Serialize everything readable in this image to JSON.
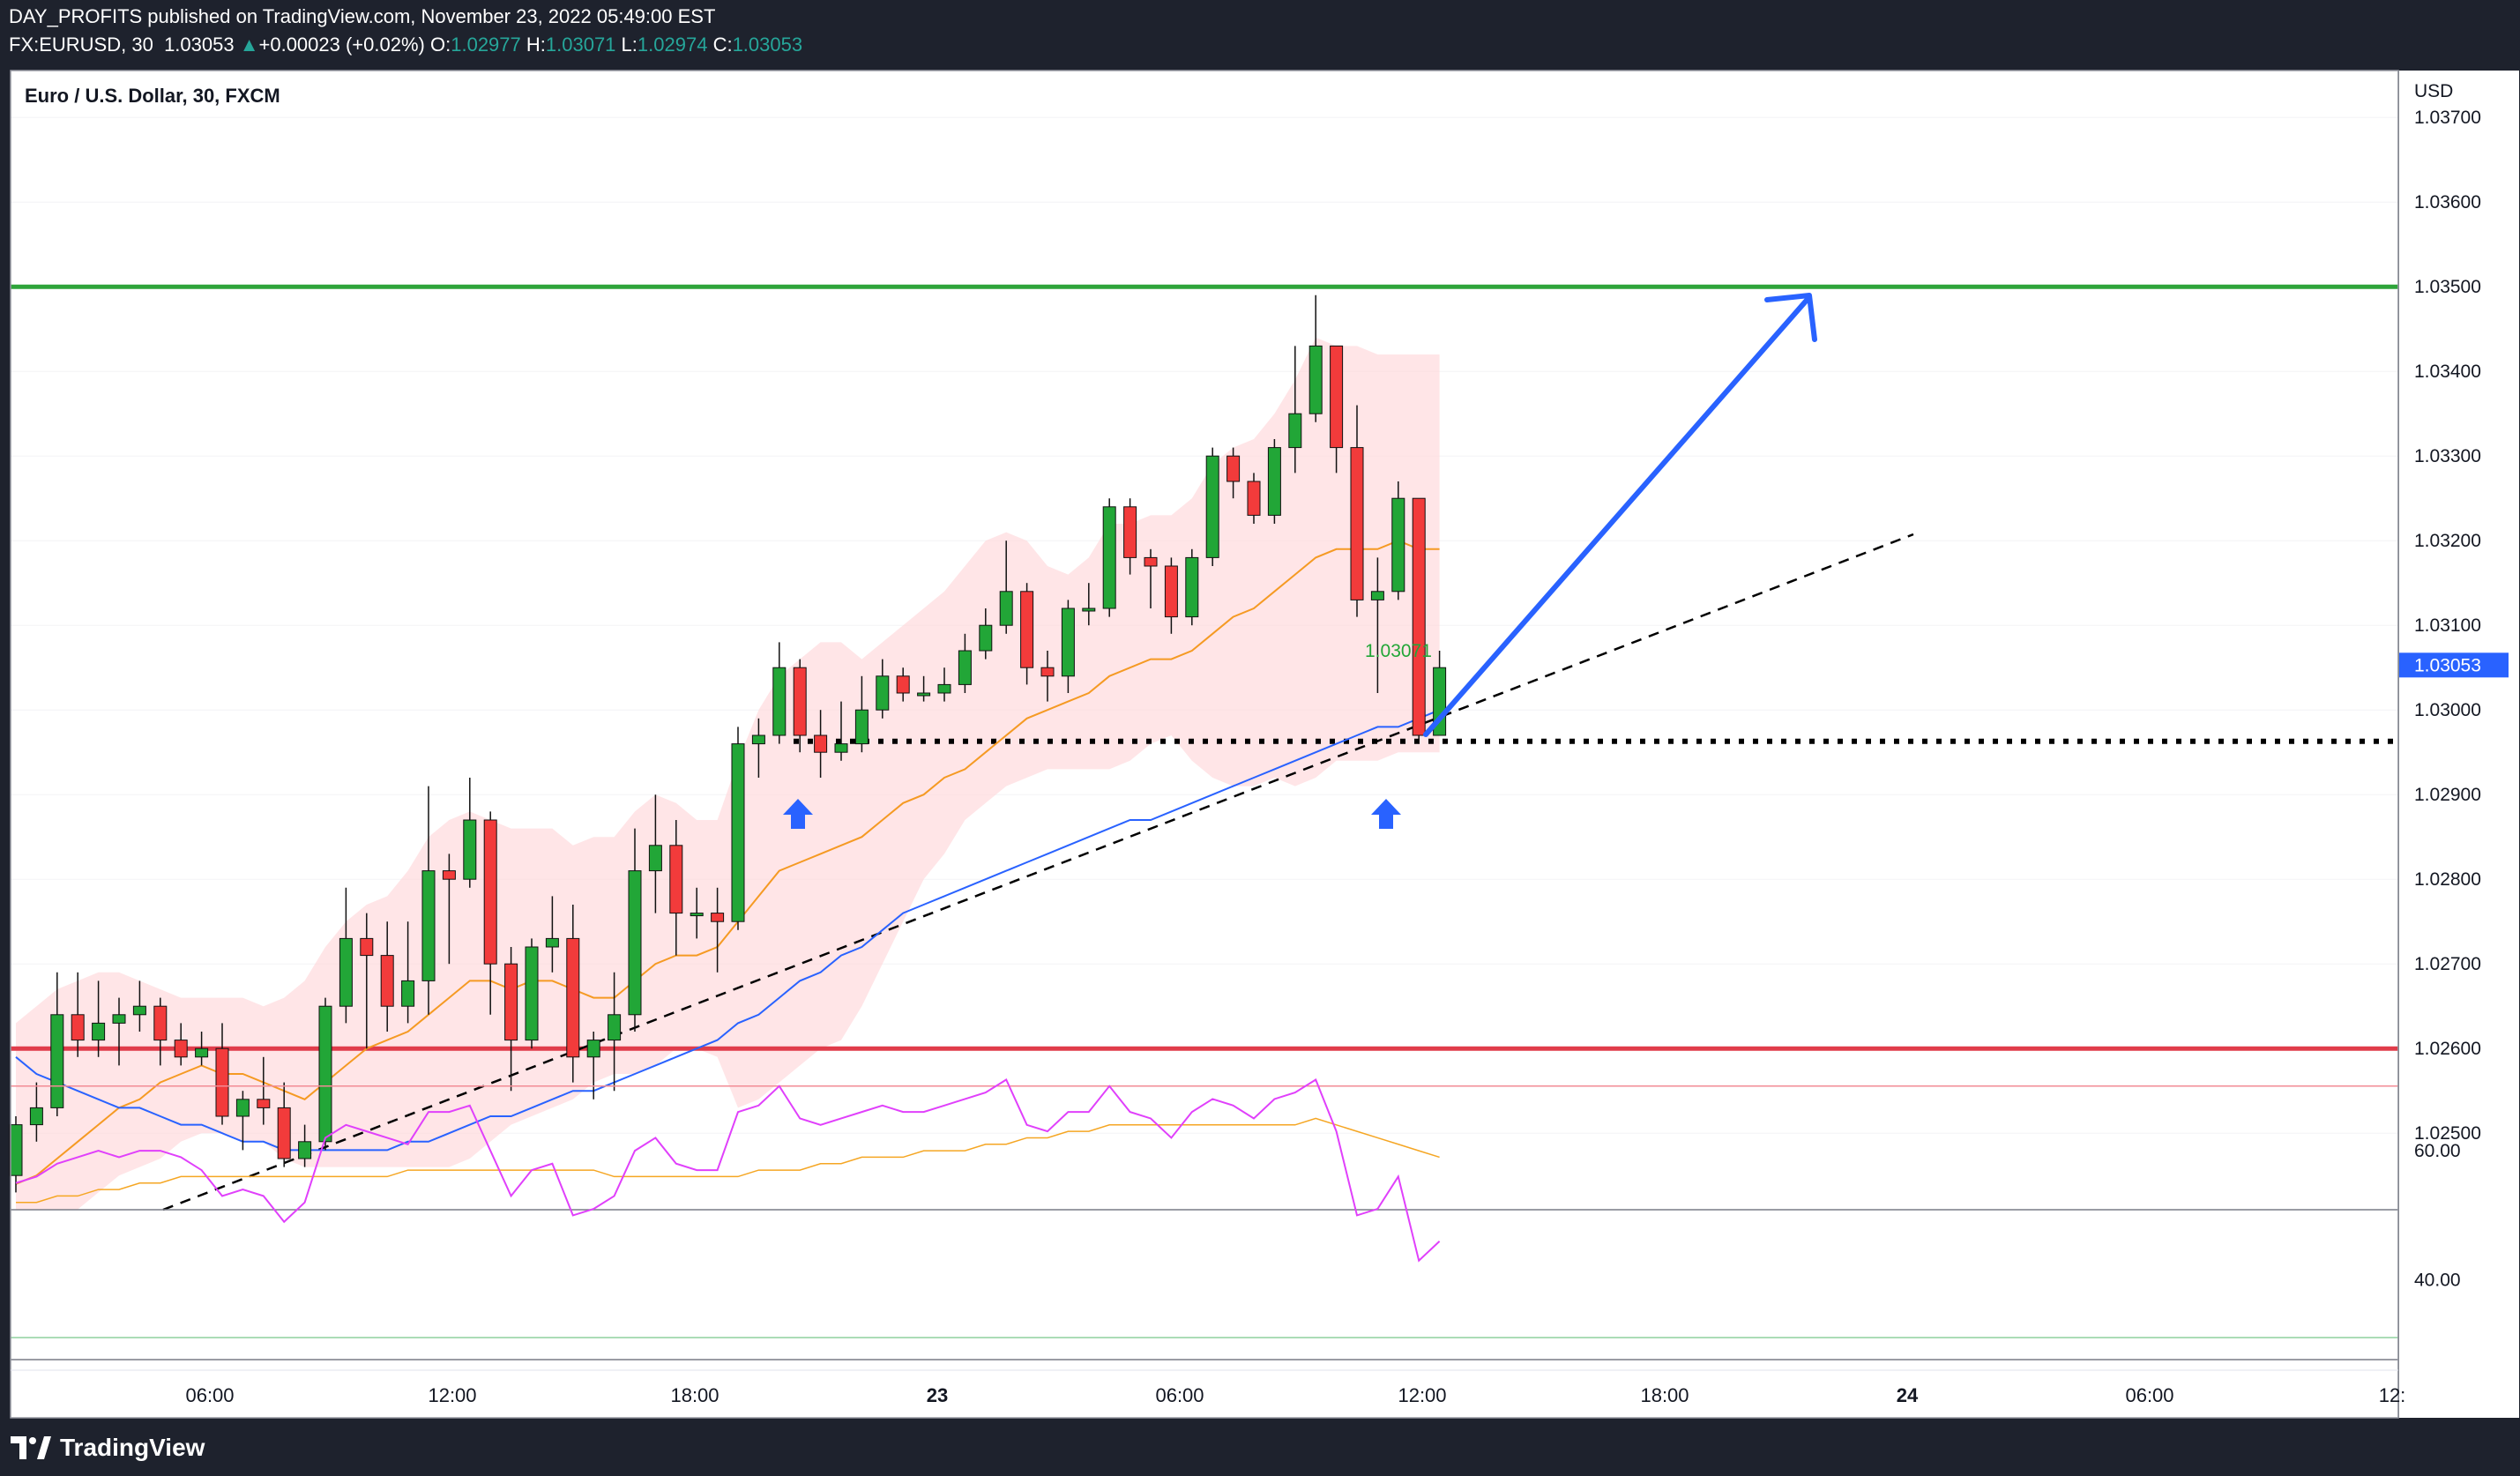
{
  "header": {
    "publish_line": "DAY_PROFITS published on TradingView.com, November 23, 2022 05:49:00 EST",
    "symbol": "FX:EURUSD, 30",
    "last": "1.03053",
    "change": "+0.00023 (+0.02%)",
    "open_key": "O:",
    "open": "1.02977",
    "high_key": "H:",
    "high": "1.03071",
    "low_key": "L:",
    "low": "1.02974",
    "close_key": "C:",
    "close": "1.03053"
  },
  "chart_title": "Euro / U.S. Dollar, 30, FXCM",
  "currency": "USD",
  "brand": "TradingView",
  "colors": {
    "up": "#22a637",
    "down": "#f23b3b",
    "support": "#e03c4a",
    "resistance": "#2ea43a",
    "ema_fast": "#f59a23",
    "ema_slow": "#2962ff",
    "band": "#ffd7da",
    "rsi": "#e040fb",
    "rsi_ma": "#f5a623",
    "arrow": "#2962ff"
  },
  "chart_data": {
    "type": "candlestick",
    "title": "Euro / U.S. Dollar, 30, FXCM",
    "y_ticks": [
      "1.02500",
      "1.02600",
      "1.02700",
      "1.02800",
      "1.02900",
      "1.03000",
      "1.03100",
      "1.03200",
      "1.03300",
      "1.03400",
      "1.03500",
      "1.03600",
      "1.03700"
    ],
    "y_tick_values": [
      1.025,
      1.026,
      1.027,
      1.028,
      1.029,
      1.03,
      1.031,
      1.032,
      1.033,
      1.034,
      1.035,
      1.036,
      1.037
    ],
    "x_ticks": [
      "06:00",
      "12:00",
      "18:00",
      "23",
      "06:00",
      "12:00",
      "18:00",
      "24",
      "06:00",
      "12:"
    ],
    "x_tick_bold": [
      false,
      false,
      false,
      true,
      false,
      false,
      false,
      true,
      false,
      false
    ],
    "price_tag": "1.03053",
    "high_label": "1.03071",
    "levels": {
      "resistance": 1.035,
      "support": 1.026,
      "dotted_support": 1.02963
    },
    "candles": [
      [
        1.0245,
        1.0251,
        1.0252,
        1.0243
      ],
      [
        1.0251,
        1.0253,
        1.0256,
        1.0249
      ],
      [
        1.0253,
        1.0264,
        1.0269,
        1.0252
      ],
      [
        1.0264,
        1.0261,
        1.0269,
        1.0259
      ],
      [
        1.0261,
        1.0263,
        1.0268,
        1.0259
      ],
      [
        1.0263,
        1.0264,
        1.0266,
        1.0258
      ],
      [
        1.0264,
        1.0265,
        1.0268,
        1.0262
      ],
      [
        1.0265,
        1.0261,
        1.0266,
        1.0258
      ],
      [
        1.0261,
        1.0259,
        1.0263,
        1.0258
      ],
      [
        1.0259,
        1.026,
        1.0262,
        1.0258
      ],
      [
        1.026,
        1.0252,
        1.0263,
        1.0251
      ],
      [
        1.0252,
        1.0254,
        1.0255,
        1.0248
      ],
      [
        1.0254,
        1.0253,
        1.0259,
        1.0251
      ],
      [
        1.0253,
        1.0247,
        1.0256,
        1.0246
      ],
      [
        1.0247,
        1.0249,
        1.0251,
        1.0246
      ],
      [
        1.0249,
        1.0265,
        1.0266,
        1.0248
      ],
      [
        1.0265,
        1.0273,
        1.0279,
        1.0263
      ],
      [
        1.0273,
        1.0271,
        1.0276,
        1.026
      ],
      [
        1.0271,
        1.0265,
        1.0275,
        1.0262
      ],
      [
        1.0265,
        1.0268,
        1.0275,
        1.0263
      ],
      [
        1.0268,
        1.0281,
        1.0291,
        1.0264
      ],
      [
        1.0281,
        1.028,
        1.0283,
        1.027
      ],
      [
        1.028,
        1.0287,
        1.0292,
        1.0279
      ],
      [
        1.0287,
        1.027,
        1.0288,
        1.0264
      ],
      [
        1.027,
        1.0261,
        1.0272,
        1.0255
      ],
      [
        1.0261,
        1.0272,
        1.0273,
        1.026
      ],
      [
        1.0272,
        1.0273,
        1.0278,
        1.0269
      ],
      [
        1.0273,
        1.0259,
        1.0277,
        1.0256
      ],
      [
        1.0259,
        1.0261,
        1.0262,
        1.0254
      ],
      [
        1.0261,
        1.0264,
        1.0269,
        1.0255
      ],
      [
        1.0264,
        1.0281,
        1.0286,
        1.0262
      ],
      [
        1.0281,
        1.0284,
        1.029,
        1.0276
      ],
      [
        1.0284,
        1.0276,
        1.0287,
        1.0271
      ],
      [
        1.0276,
        1.0276,
        1.0279,
        1.0273
      ],
      [
        1.0276,
        1.0275,
        1.0279,
        1.0269
      ],
      [
        1.0275,
        1.0296,
        1.0298,
        1.0274
      ],
      [
        1.0296,
        1.0297,
        1.0299,
        1.0292
      ],
      [
        1.0297,
        1.0305,
        1.0308,
        1.0296
      ],
      [
        1.0305,
        1.0297,
        1.0306,
        1.0295
      ],
      [
        1.0297,
        1.0295,
        1.03,
        1.0292
      ],
      [
        1.0295,
        1.0296,
        1.0301,
        1.0294
      ],
      [
        1.0296,
        1.03,
        1.0304,
        1.0295
      ],
      [
        1.03,
        1.0304,
        1.0306,
        1.0299
      ],
      [
        1.0304,
        1.0302,
        1.0305,
        1.0301
      ],
      [
        1.0302,
        1.0302,
        1.0304,
        1.0301
      ],
      [
        1.0302,
        1.0303,
        1.0305,
        1.0301
      ],
      [
        1.0303,
        1.0307,
        1.0309,
        1.0302
      ],
      [
        1.0307,
        1.031,
        1.0312,
        1.0306
      ],
      [
        1.031,
        1.0314,
        1.032,
        1.0309
      ],
      [
        1.0314,
        1.0305,
        1.0315,
        1.0303
      ],
      [
        1.0305,
        1.0304,
        1.0307,
        1.0301
      ],
      [
        1.0304,
        1.0312,
        1.0313,
        1.0302
      ],
      [
        1.0312,
        1.0312,
        1.0315,
        1.031
      ],
      [
        1.0312,
        1.0324,
        1.0325,
        1.0311
      ],
      [
        1.0324,
        1.0318,
        1.0325,
        1.0316
      ],
      [
        1.0318,
        1.0317,
        1.0319,
        1.0312
      ],
      [
        1.0317,
        1.0311,
        1.0318,
        1.0309
      ],
      [
        1.0311,
        1.0318,
        1.0319,
        1.031
      ],
      [
        1.0318,
        1.033,
        1.0331,
        1.0317
      ],
      [
        1.033,
        1.0327,
        1.0331,
        1.0325
      ],
      [
        1.0327,
        1.0323,
        1.0328,
        1.0322
      ],
      [
        1.0323,
        1.0331,
        1.0332,
        1.0322
      ],
      [
        1.0331,
        1.0335,
        1.0343,
        1.0328
      ],
      [
        1.0335,
        1.0343,
        1.0349,
        1.0334
      ],
      [
        1.0343,
        1.0331,
        1.0343,
        1.0328
      ],
      [
        1.0331,
        1.0313,
        1.0336,
        1.0311
      ],
      [
        1.0313,
        1.0314,
        1.0318,
        1.0302
      ],
      [
        1.0314,
        1.0325,
        1.0327,
        1.0313
      ],
      [
        1.0325,
        1.0297,
        1.0325,
        1.0296
      ],
      [
        1.0297,
        1.0305,
        1.0307,
        1.0297
      ]
    ],
    "ema_fast": [
      1.0244,
      1.0245,
      1.0247,
      1.0249,
      1.0251,
      1.0253,
      1.0254,
      1.0256,
      1.0257,
      1.0258,
      1.0257,
      1.0257,
      1.0256,
      1.0255,
      1.0254,
      1.0256,
      1.0258,
      1.026,
      1.0261,
      1.0262,
      1.0264,
      1.0266,
      1.0268,
      1.0268,
      1.0267,
      1.0268,
      1.0268,
      1.0267,
      1.0266,
      1.0266,
      1.0268,
      1.027,
      1.0271,
      1.0271,
      1.0272,
      1.0275,
      1.0278,
      1.0281,
      1.0282,
      1.0283,
      1.0284,
      1.0285,
      1.0287,
      1.0289,
      1.029,
      1.0292,
      1.0293,
      1.0295,
      1.0297,
      1.0299,
      1.03,
      1.0301,
      1.0302,
      1.0304,
      1.0305,
      1.0306,
      1.0306,
      1.0307,
      1.0309,
      1.0311,
      1.0312,
      1.0314,
      1.0316,
      1.0318,
      1.0319,
      1.0319,
      1.0319,
      1.032,
      1.0319,
      1.0319
    ],
    "ema_slow": [
      1.0259,
      1.0257,
      1.0256,
      1.0255,
      1.0254,
      1.0253,
      1.0253,
      1.0252,
      1.0251,
      1.0251,
      1.025,
      1.0249,
      1.0249,
      1.0248,
      1.0248,
      1.0248,
      1.0248,
      1.0248,
      1.0248,
      1.0249,
      1.0249,
      1.025,
      1.0251,
      1.0252,
      1.0252,
      1.0253,
      1.0254,
      1.0255,
      1.0255,
      1.0256,
      1.0257,
      1.0258,
      1.0259,
      1.026,
      1.0261,
      1.0263,
      1.0264,
      1.0266,
      1.0268,
      1.0269,
      1.0271,
      1.0272,
      1.0274,
      1.0276,
      1.0277,
      1.0278,
      1.0279,
      1.028,
      1.0281,
      1.0282,
      1.0283,
      1.0284,
      1.0285,
      1.0286,
      1.0287,
      1.0287,
      1.0288,
      1.0289,
      1.029,
      1.0291,
      1.0292,
      1.0293,
      1.0294,
      1.0295,
      1.0296,
      1.0297,
      1.0298,
      1.0298,
      1.0299,
      1.03
    ],
    "band_upper": [
      1.0263,
      1.0265,
      1.0267,
      1.0268,
      1.0269,
      1.0269,
      1.0268,
      1.0267,
      1.0266,
      1.0266,
      1.0266,
      1.0266,
      1.0265,
      1.0266,
      1.0268,
      1.0272,
      1.0275,
      1.0277,
      1.0278,
      1.0281,
      1.0285,
      1.0287,
      1.0288,
      1.0287,
      1.0286,
      1.0286,
      1.0286,
      1.0284,
      1.0285,
      1.0285,
      1.0288,
      1.029,
      1.0289,
      1.0287,
      1.0287,
      1.0294,
      1.03,
      1.0304,
      1.0306,
      1.0308,
      1.0308,
      1.0306,
      1.0308,
      1.031,
      1.0312,
      1.0314,
      1.0317,
      1.032,
      1.0321,
      1.032,
      1.0317,
      1.0316,
      1.0318,
      1.0322,
      1.0322,
      1.0323,
      1.0323,
      1.0325,
      1.0329,
      1.0331,
      1.0332,
      1.0335,
      1.0339,
      1.0344,
      1.0343,
      1.0343,
      1.0342,
      1.0342,
      1.0342,
      1.0342
    ],
    "band_lower": [
      1.0239,
      1.0239,
      1.024,
      1.0241,
      1.0243,
      1.0245,
      1.0246,
      1.0247,
      1.0249,
      1.025,
      1.025,
      1.0249,
      1.0249,
      1.0247,
      1.0246,
      1.0246,
      1.0246,
      1.0246,
      1.0246,
      1.0246,
      1.0246,
      1.0246,
      1.0247,
      1.0249,
      1.0251,
      1.0252,
      1.0253,
      1.0254,
      1.0256,
      1.0257,
      1.0257,
      1.0258,
      1.026,
      1.026,
      1.0259,
      1.0253,
      1.0254,
      1.0256,
      1.0258,
      1.026,
      1.0261,
      1.0265,
      1.027,
      1.0275,
      1.028,
      1.0283,
      1.0287,
      1.0289,
      1.0291,
      1.0292,
      1.0293,
      1.0293,
      1.0293,
      1.0293,
      1.0294,
      1.0296,
      1.0297,
      1.0294,
      1.0292,
      1.0291,
      1.0291,
      1.0292,
      1.0291,
      1.0292,
      1.0294,
      1.0294,
      1.0294,
      1.0295,
      1.0295,
      1.0295
    ],
    "rsi": {
      "ticks": [
        "40.00",
        "60.00"
      ],
      "tick_values": [
        40,
        60
      ],
      "ylim": [
        30,
        75
      ],
      "upper": 70,
      "lower": 30,
      "values": [
        55,
        56,
        58,
        59,
        60,
        59,
        60,
        60,
        59,
        57,
        53,
        54,
        53,
        49,
        52,
        62,
        64,
        63,
        62,
        61,
        66,
        66,
        67,
        60,
        53,
        57,
        58,
        50,
        51,
        53,
        60,
        62,
        58,
        57,
        57,
        66,
        67,
        70,
        65,
        64,
        65,
        66,
        67,
        66,
        66,
        67,
        68,
        69,
        71,
        64,
        63,
        66,
        66,
        70,
        66,
        65,
        62,
        66,
        68,
        67,
        65,
        68,
        69,
        71,
        63,
        50,
        51,
        56,
        43,
        46
      ],
      "ma": [
        52,
        52,
        53,
        53,
        54,
        54,
        55,
        55,
        56,
        56,
        56,
        56,
        56,
        56,
        56,
        56,
        56,
        56,
        56,
        57,
        57,
        57,
        57,
        57,
        57,
        57,
        57,
        57,
        57,
        56,
        56,
        56,
        56,
        56,
        56,
        56,
        57,
        57,
        57,
        58,
        58,
        59,
        59,
        59,
        60,
        60,
        60,
        61,
        61,
        62,
        62,
        63,
        63,
        64,
        64,
        64,
        64,
        64,
        64,
        64,
        64,
        64,
        64,
        65,
        64,
        63,
        62,
        61,
        60,
        59
      ]
    }
  }
}
